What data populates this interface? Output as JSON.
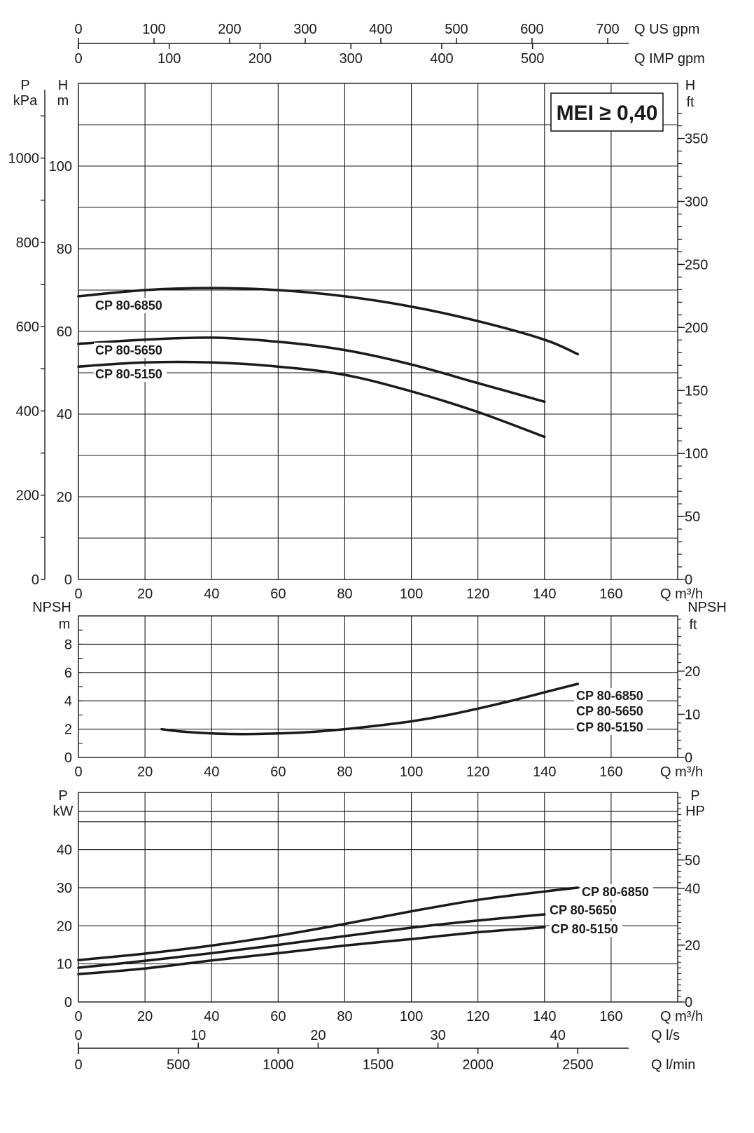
{
  "chart_data": {
    "type": "line",
    "header": {
      "top_gpm_ticks": [
        "0",
        "100",
        "200",
        "300",
        "400",
        "500",
        "600",
        "700"
      ],
      "us_gpm_label": "Q US gpm",
      "imp_gpm_ticks": [
        "0",
        "100",
        "200",
        "300",
        "400",
        "500"
      ],
      "imp_gpm_label": "Q IMP gpm",
      "mei_badge": "MEI ≥ 0,40"
    },
    "head_chart": {
      "ylabel_left_outer": [
        "P",
        "kPa"
      ],
      "ylabel_left_inner": [
        "H",
        "m"
      ],
      "ylabel_right": [
        "H",
        "ft"
      ],
      "xlabel": "Q m³/h",
      "xlim": [
        0,
        180
      ],
      "ylim": [
        0,
        120
      ],
      "x_ticks": [
        0,
        20,
        40,
        60,
        80,
        100,
        120,
        140,
        160
      ],
      "y_ticks_m": [
        0,
        20,
        40,
        60,
        80,
        100
      ],
      "y_ticks_kpa": [
        0,
        200,
        400,
        600,
        800,
        1000
      ],
      "y_ticks_ft": [
        0,
        50,
        100,
        150,
        200,
        250,
        300,
        350
      ],
      "series": [
        {
          "name": "CP 80-6850",
          "x": [
            0,
            20,
            40,
            60,
            80,
            100,
            120,
            140,
            150
          ],
          "y": [
            68.5,
            70,
            70.5,
            70,
            68.5,
            66,
            62.5,
            58,
            54.5
          ]
        },
        {
          "name": "CP 80-5650",
          "x": [
            0,
            20,
            40,
            60,
            80,
            100,
            120,
            140
          ],
          "y": [
            57,
            58,
            58.5,
            57.5,
            55.5,
            52,
            47.5,
            43
          ]
        },
        {
          "name": "CP 80-5150",
          "x": [
            0,
            20,
            40,
            60,
            80,
            100,
            120,
            140
          ],
          "y": [
            51.5,
            52.5,
            52.5,
            51.5,
            49.5,
            45.5,
            40.5,
            34.5
          ]
        }
      ]
    },
    "npsh_chart": {
      "ylabel_left": [
        "NPSH",
        "m"
      ],
      "ylabel_right": [
        "NPSH",
        "ft"
      ],
      "xlabel": "Q m³/h",
      "xlim": [
        0,
        180
      ],
      "ylim": [
        0,
        10
      ],
      "x_ticks": [
        0,
        20,
        40,
        60,
        80,
        100,
        120,
        140,
        160
      ],
      "y_ticks_m": [
        0,
        2,
        4,
        6,
        8
      ],
      "y_ticks_ft": [
        0,
        10,
        20
      ],
      "series": [
        {
          "name": "CP 80-6850, CP 80-5650, CP 80-5150",
          "x": [
            25,
            30,
            40,
            50,
            60,
            70,
            80,
            90,
            100,
            110,
            120,
            130,
            140,
            150
          ],
          "y": [
            2.0,
            1.85,
            1.7,
            1.65,
            1.7,
            1.8,
            2.0,
            2.25,
            2.55,
            2.95,
            3.45,
            4.0,
            4.6,
            5.2
          ]
        }
      ],
      "labels": [
        "CP 80-6850",
        "CP 80-5650",
        "CP 80-5150"
      ]
    },
    "power_chart": {
      "ylabel_left": [
        "P",
        "kW"
      ],
      "ylabel_right": [
        "P",
        "HP"
      ],
      "xlabel": "Q m³/h",
      "xlim": [
        0,
        180
      ],
      "ylim": [
        0,
        55
      ],
      "x_ticks": [
        0,
        20,
        40,
        60,
        80,
        100,
        120,
        140,
        160
      ],
      "y_ticks_kw": [
        0,
        10,
        20,
        30,
        40
      ],
      "y_ticks_hp": [
        0,
        20,
        40,
        50
      ],
      "series": [
        {
          "name": "CP 80-6850",
          "x": [
            0,
            20,
            40,
            60,
            80,
            100,
            120,
            140,
            150
          ],
          "y": [
            11,
            12.7,
            14.8,
            17.4,
            20.5,
            23.8,
            26.8,
            29,
            30
          ]
        },
        {
          "name": "CP 80-5650",
          "x": [
            0,
            20,
            40,
            60,
            80,
            100,
            120,
            140
          ],
          "y": [
            9,
            10.8,
            12.8,
            15,
            17.3,
            19.5,
            21.4,
            23
          ]
        },
        {
          "name": "CP 80-5150",
          "x": [
            0,
            20,
            40,
            60,
            80,
            100,
            120,
            140
          ],
          "y": [
            7.3,
            8.8,
            10.9,
            12.8,
            14.8,
            16.5,
            18.3,
            19.6
          ]
        }
      ]
    },
    "footer": {
      "ls_ticks": [
        "0",
        "10",
        "20",
        "30",
        "40"
      ],
      "ls_label": "Q l/s",
      "lmin_ticks": [
        "0",
        "500",
        "1000",
        "1500",
        "2000",
        "2500"
      ],
      "lmin_label": "Q l/min"
    }
  }
}
